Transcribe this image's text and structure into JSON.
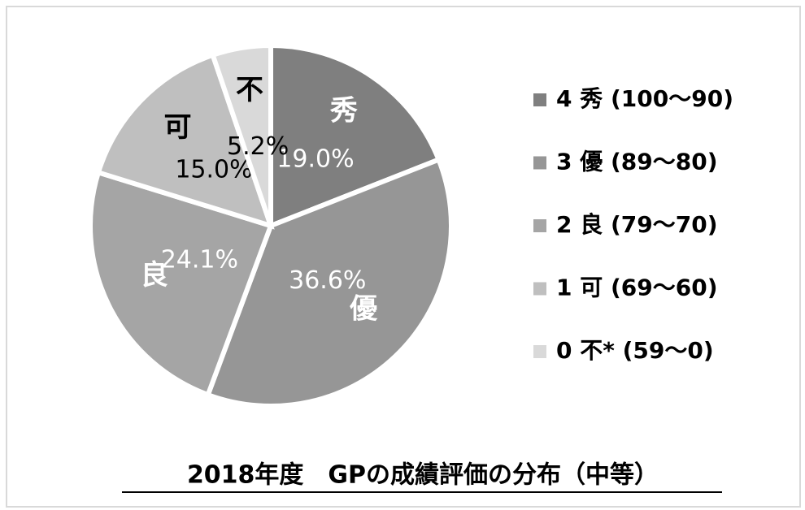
{
  "chart_data": {
    "type": "pie",
    "title": "2018年度　GPの成績評価の分布（中等）",
    "categories": [
      "4 秀 (100～90)",
      "3 優 (89～80)",
      "2 良 (79～70)",
      "1 可 (69～60)",
      "0 不* (59～0)"
    ],
    "slice_labels": [
      "秀",
      "優",
      "良",
      "可",
      "不"
    ],
    "values": [
      19.0,
      36.6,
      24.1,
      15.0,
      5.2
    ],
    "value_labels": [
      "19.0%",
      "36.6%",
      "24.1%",
      "15.0%",
      "5.2%"
    ],
    "colors": [
      "#7f7f7f",
      "#969696",
      "#a5a5a5",
      "#bfbfbf",
      "#d9d9d9"
    ],
    "label_colors": [
      "#ffffff",
      "#ffffff",
      "#ffffff",
      "#000000",
      "#000000"
    ],
    "legend": "right"
  }
}
